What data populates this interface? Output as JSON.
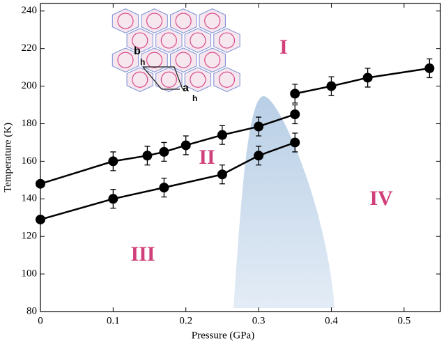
{
  "chart_data": {
    "type": "scatter",
    "xlabel": "Pressure (GPa)",
    "ylabel": "Temperature (K)",
    "xlim": [
      0,
      0.55
    ],
    "ylim": [
      80,
      244
    ],
    "xticks": [
      0,
      0.1,
      0.2,
      0.3,
      0.4,
      0.5
    ],
    "yticks": [
      80,
      100,
      120,
      140,
      160,
      180,
      200,
      220,
      240
    ],
    "annotations": [
      "I",
      "II",
      "III",
      "IV"
    ],
    "inset_labels": [
      "b",
      "h",
      "a",
      "h"
    ],
    "series": [
      {
        "color": "#000000",
        "x": [
          0,
          0.1,
          0.147,
          0.17,
          0.2,
          0.25,
          0.3,
          0.35
        ],
        "values": [
          148,
          160,
          163,
          165,
          168.5,
          174,
          178.5,
          185
        ],
        "errors": [
          0,
          5,
          5,
          5,
          5,
          5,
          5,
          5
        ]
      },
      {
        "color": "#000000",
        "x": [
          0,
          0.1,
          0.17,
          0.25,
          0.3,
          0.35
        ],
        "values": [
          129,
          140,
          146,
          153,
          163,
          170
        ],
        "errors": [
          0,
          5,
          5,
          5,
          5,
          5
        ]
      },
      {
        "color": "#000000",
        "x": [
          0.35,
          0.4,
          0.45,
          0.535
        ],
        "values": [
          196,
          200,
          204.5,
          209.5
        ],
        "errors": [
          5,
          5,
          5,
          5
        ]
      }
    ]
  }
}
